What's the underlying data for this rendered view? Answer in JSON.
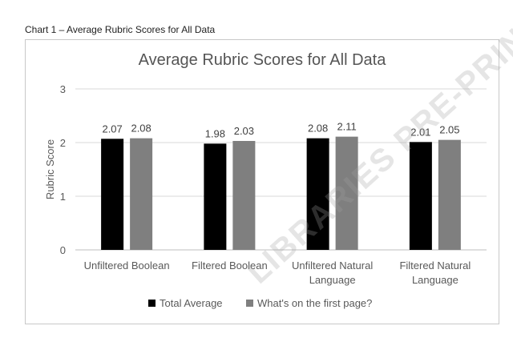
{
  "caption": "Chart 1 – Average Rubric Scores for All Data",
  "watermark": "LIBRARIES PRE-PRINT",
  "chart_data": {
    "type": "bar",
    "title": "Average Rubric Scores for All Data",
    "xlabel": "",
    "ylabel": "Rubric Score",
    "ylim": [
      0,
      3
    ],
    "yticks": [
      "0",
      "1",
      "2",
      "3"
    ],
    "grid": true,
    "legend_position": "bottom",
    "categories": [
      [
        "Unfiltered Boolean"
      ],
      [
        "Filtered Boolean"
      ],
      [
        "Unfiltered Natural",
        "Language"
      ],
      [
        "Filtered Natural",
        "Language"
      ]
    ],
    "series": [
      {
        "name": "Total Average",
        "color": "#000000",
        "values": [
          2.07,
          1.98,
          2.08,
          2.01
        ],
        "labels": [
          "2.07",
          "1.98",
          "2.08",
          "2.01"
        ]
      },
      {
        "name": "What's on the first page?",
        "color": "#7f7f7f",
        "values": [
          2.08,
          2.03,
          2.11,
          2.05
        ],
        "labels": [
          "2.08",
          "2.03",
          "2.11",
          "2.05"
        ]
      }
    ]
  }
}
